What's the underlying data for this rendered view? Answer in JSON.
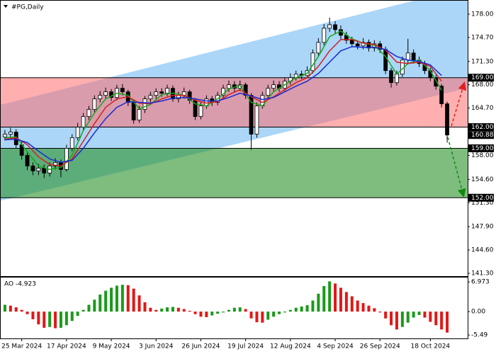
{
  "chart_data": {
    "type": "candlestick",
    "title": "#PG,Daily",
    "ylim": [
      140.9,
      179.9
    ],
    "yticks": [
      {
        "value": 178,
        "label": "178.00"
      },
      {
        "value": 174.7,
        "label": "174.70"
      },
      {
        "value": 171.3,
        "label": "171.30"
      },
      {
        "value": 168,
        "label": "168.00"
      },
      {
        "value": 164.7,
        "label": "164.70"
      },
      {
        "value": 158,
        "label": "158.00"
      },
      {
        "value": 154.6,
        "label": "154.60"
      },
      {
        "value": 151.3,
        "label": "151.30"
      },
      {
        "value": 147.9,
        "label": "147.90"
      },
      {
        "value": 144.6,
        "label": "144.60"
      },
      {
        "value": 141.3,
        "label": "141.30"
      }
    ],
    "xticks": [
      {
        "value": 3,
        "label": "25 Mar 2024"
      },
      {
        "value": 11,
        "label": "17 Apr 2024"
      },
      {
        "value": 19,
        "label": "9 May 2024"
      },
      {
        "value": 27,
        "label": "3 Jun 2024"
      },
      {
        "value": 35,
        "label": "26 Jun 2024"
      },
      {
        "value": 43,
        "label": "19 Jul 2024"
      },
      {
        "value": 51,
        "label": "12 Aug 2024"
      },
      {
        "value": 59,
        "label": "4 Sep 2024"
      },
      {
        "value": 67,
        "label": "26 Sep 2024"
      },
      {
        "value": 76,
        "label": "18 Oct 2024"
      }
    ],
    "candles": [
      [
        160.6,
        161.6,
        160.1,
        161
      ],
      [
        161,
        161.9,
        160.6,
        161.3
      ],
      [
        161.3,
        161.7,
        159,
        159.5
      ],
      [
        159.5,
        160,
        157.4,
        158
      ],
      [
        158,
        158.4,
        155.9,
        156.5
      ],
      [
        156.5,
        157,
        155.2,
        155.8
      ],
      [
        155.8,
        156.8,
        155.2,
        156.2
      ],
      [
        156.2,
        156.7,
        154.8,
        155.5
      ],
      [
        155.5,
        157,
        155,
        156.5
      ],
      [
        156.5,
        157.6,
        156,
        157
      ],
      [
        157,
        157.4,
        154.9,
        156
      ],
      [
        156,
        159.5,
        155.7,
        159
      ],
      [
        159,
        161,
        158.6,
        160.5
      ],
      [
        160.5,
        162.6,
        160.1,
        162
      ],
      [
        162,
        164,
        161.6,
        163.5
      ],
      [
        163.5,
        165,
        163,
        164.5
      ],
      [
        164.5,
        166.5,
        164.1,
        166
      ],
      [
        166,
        167.1,
        165.5,
        166.5
      ],
      [
        166.5,
        167.6,
        166,
        167
      ],
      [
        167,
        167.4,
        165.7,
        166.2
      ],
      [
        166.2,
        168,
        165.8,
        167.5
      ],
      [
        167.5,
        168.1,
        166.5,
        167
      ],
      [
        167,
        167.3,
        165,
        165.5
      ],
      [
        165.5,
        165.8,
        162.5,
        163
      ],
      [
        163,
        165,
        162.6,
        164.5
      ],
      [
        164.5,
        166.4,
        164,
        166
      ],
      [
        166,
        167,
        165.5,
        166.5
      ],
      [
        166.5,
        167.5,
        166,
        167
      ],
      [
        167,
        167.5,
        166.3,
        166.8
      ],
      [
        166.8,
        168,
        166.4,
        167.5
      ],
      [
        167.5,
        167.9,
        165.6,
        166
      ],
      [
        166,
        167,
        165.5,
        166.5
      ],
      [
        166.5,
        167.6,
        166,
        167
      ],
      [
        167,
        167.3,
        165.3,
        165.8
      ],
      [
        165.8,
        166.1,
        163,
        163.5
      ],
      [
        163.5,
        165.5,
        163.1,
        165
      ],
      [
        165,
        166.5,
        164.6,
        166
      ],
      [
        166,
        166.4,
        165,
        165.5
      ],
      [
        165.5,
        167,
        165.1,
        166.5
      ],
      [
        166.5,
        168,
        166.1,
        167.5
      ],
      [
        167.5,
        168.6,
        167,
        168
      ],
      [
        168,
        168.5,
        167,
        167.5
      ],
      [
        167.5,
        168.6,
        167.1,
        168
      ],
      [
        168,
        168.3,
        166,
        166.5
      ],
      [
        166.5,
        166.8,
        158.8,
        161
      ],
      [
        161,
        165.5,
        160.5,
        165
      ],
      [
        165,
        167,
        164.6,
        166.5
      ],
      [
        166.5,
        168,
        166,
        167.5
      ],
      [
        167.5,
        168.6,
        167.1,
        168
      ],
      [
        168,
        168.5,
        167,
        167.5
      ],
      [
        167.5,
        169,
        167.1,
        168.5
      ],
      [
        168.5,
        169.6,
        168,
        169
      ],
      [
        169,
        170,
        168.6,
        169.5
      ],
      [
        169.5,
        170,
        168.8,
        169.3
      ],
      [
        169.3,
        170.6,
        168.9,
        170
      ],
      [
        170,
        173,
        169.6,
        172.5
      ],
      [
        172.5,
        174.6,
        172,
        174
      ],
      [
        174,
        176.6,
        173.6,
        176
      ],
      [
        176,
        177.5,
        175.5,
        176.5
      ],
      [
        176.5,
        177,
        175.2,
        175.8
      ],
      [
        175.8,
        176.4,
        174.4,
        175
      ],
      [
        175,
        175.5,
        173.8,
        174.3
      ],
      [
        174.3,
        174.8,
        173.3,
        173.8
      ],
      [
        173.8,
        174.3,
        173,
        173.5
      ],
      [
        173.5,
        174.6,
        173,
        174
      ],
      [
        174,
        174.4,
        172.7,
        173.2
      ],
      [
        173.2,
        174.3,
        172.7,
        173.8
      ],
      [
        173.8,
        174.2,
        172.5,
        173
      ],
      [
        173,
        173.4,
        169.5,
        170
      ],
      [
        170,
        170.4,
        167.6,
        168.3
      ],
      [
        168.3,
        170,
        167.9,
        169.5
      ],
      [
        169.5,
        172,
        169.1,
        171.5
      ],
      [
        171.5,
        174.5,
        171,
        172.5
      ],
      [
        172.5,
        173,
        171,
        171.5
      ],
      [
        171.5,
        172,
        170.5,
        171
      ],
      [
        171,
        171.4,
        169.5,
        170
      ],
      [
        170,
        170.4,
        168.5,
        169
      ],
      [
        169,
        169.4,
        167.3,
        167.8
      ],
      [
        167.8,
        168.1,
        164.8,
        165.3
      ],
      [
        165.3,
        165.6,
        159.8,
        160.88
      ]
    ],
    "ma_x": [
      0,
      2,
      4,
      6,
      8,
      10,
      12,
      14,
      16,
      18,
      20,
      22,
      24,
      26,
      28,
      30,
      32,
      34,
      36,
      38,
      40,
      42,
      44,
      46,
      48,
      50,
      52,
      54,
      56,
      58,
      60,
      62,
      64,
      66,
      68,
      70,
      72,
      74,
      76,
      78
    ],
    "series": [
      {
        "color": "#1aa81a",
        "values": [
          160.5,
          160.6,
          158.5,
          156.5,
          156,
          156.3,
          158,
          161.5,
          164,
          166,
          166.8,
          166.5,
          164.6,
          165.2,
          166.6,
          166.8,
          166.5,
          165.3,
          165,
          166,
          167.4,
          167.9,
          165.5,
          165,
          167,
          168,
          169,
          169.6,
          172,
          174.8,
          175.6,
          174.5,
          173.9,
          173.6,
          172,
          169.5,
          171,
          171.5,
          170,
          167.2
        ]
      },
      {
        "color": "#d42020",
        "values": [
          160.3,
          160.5,
          159.5,
          157.8,
          156.7,
          156.5,
          157.5,
          160,
          162.5,
          164.8,
          166,
          166.3,
          165.4,
          165.3,
          166,
          166.5,
          166.5,
          165.8,
          165.4,
          165.6,
          166.6,
          167.3,
          166.3,
          165.5,
          166.3,
          167.3,
          168.3,
          169,
          170.6,
          172.8,
          174.4,
          174.4,
          173.9,
          173.7,
          172.9,
          171.2,
          171,
          171.2,
          170.6,
          168.5
        ]
      },
      {
        "color": "#1a2ad4",
        "values": [
          160.2,
          160.3,
          159.8,
          158.6,
          157.5,
          157,
          157.3,
          159,
          161.2,
          163.2,
          164.8,
          165.6,
          165.5,
          165.4,
          165.7,
          166.1,
          166.2,
          166,
          165.7,
          165.7,
          166.2,
          166.8,
          166.4,
          165.9,
          166.2,
          167,
          167.8,
          168.5,
          169.6,
          171.2,
          172.8,
          173.4,
          173.3,
          173.3,
          173,
          172,
          171.5,
          171.3,
          170.8,
          169.3
        ]
      }
    ],
    "channel": {
      "color": "#acd6f8",
      "upper": [
        [
          0,
          165.3
        ],
        [
          83,
          181.9
        ]
      ],
      "lower": [
        [
          0,
          151.7
        ],
        [
          83,
          167.6
        ]
      ]
    },
    "zones": [
      {
        "color": "rgba(255,110,110,0.55)",
        "top": {
          "value": 169,
          "label": "169.00"
        },
        "bottom": {
          "value": 162,
          "label": "162.00"
        }
      },
      {
        "color": "rgba(40,145,40,0.6)",
        "top": {
          "value": 159,
          "label": "159.00"
        },
        "bottom": {
          "value": 152,
          "label": "152.00"
        }
      }
    ],
    "current": {
      "value": 160.88,
      "label": "160.88"
    },
    "indicator": {
      "type": "histogram",
      "title": "AO -4.923",
      "up_color": "#1a9a1a",
      "down_color": "#e01818",
      "ylim": [
        -6.3,
        8.0
      ],
      "yticks": [
        6.973,
        {
          "value": 0,
          "label": "0.00"
        },
        -5.49
      ],
      "values": [
        1.6,
        1.4,
        1.0,
        0.4,
        -0.6,
        -1.8,
        -3.0,
        -3.8,
        -3.6,
        -3.9,
        -3.8,
        -3.2,
        -2.2,
        -1.0,
        0.4,
        1.6,
        2.8,
        4.0,
        4.9,
        5.6,
        6.1,
        6.3,
        6.2,
        5.4,
        3.8,
        2.2,
        0.9,
        0.4,
        0.7,
        1.0,
        1.1,
        0.9,
        0.6,
        0.2,
        -0.6,
        -1.2,
        -1.3,
        -0.9,
        -0.5,
        -0.2,
        0.4,
        0.9,
        1.0,
        0.6,
        -1.6,
        -2.5,
        -2.6,
        -1.9,
        -1.2,
        -0.6,
        -0.2,
        0.4,
        0.9,
        1.2,
        1.5,
        2.6,
        4.2,
        6.0,
        7.1,
        6.6,
        5.6,
        4.6,
        3.6,
        2.6,
        2.0,
        1.4,
        0.8,
        -0.2,
        -1.6,
        -3.2,
        -4.2,
        -3.6,
        -2.6,
        -1.4,
        -0.8,
        -1.4,
        -2.4,
        -3.2,
        -4.2,
        -4.923
      ]
    }
  }
}
